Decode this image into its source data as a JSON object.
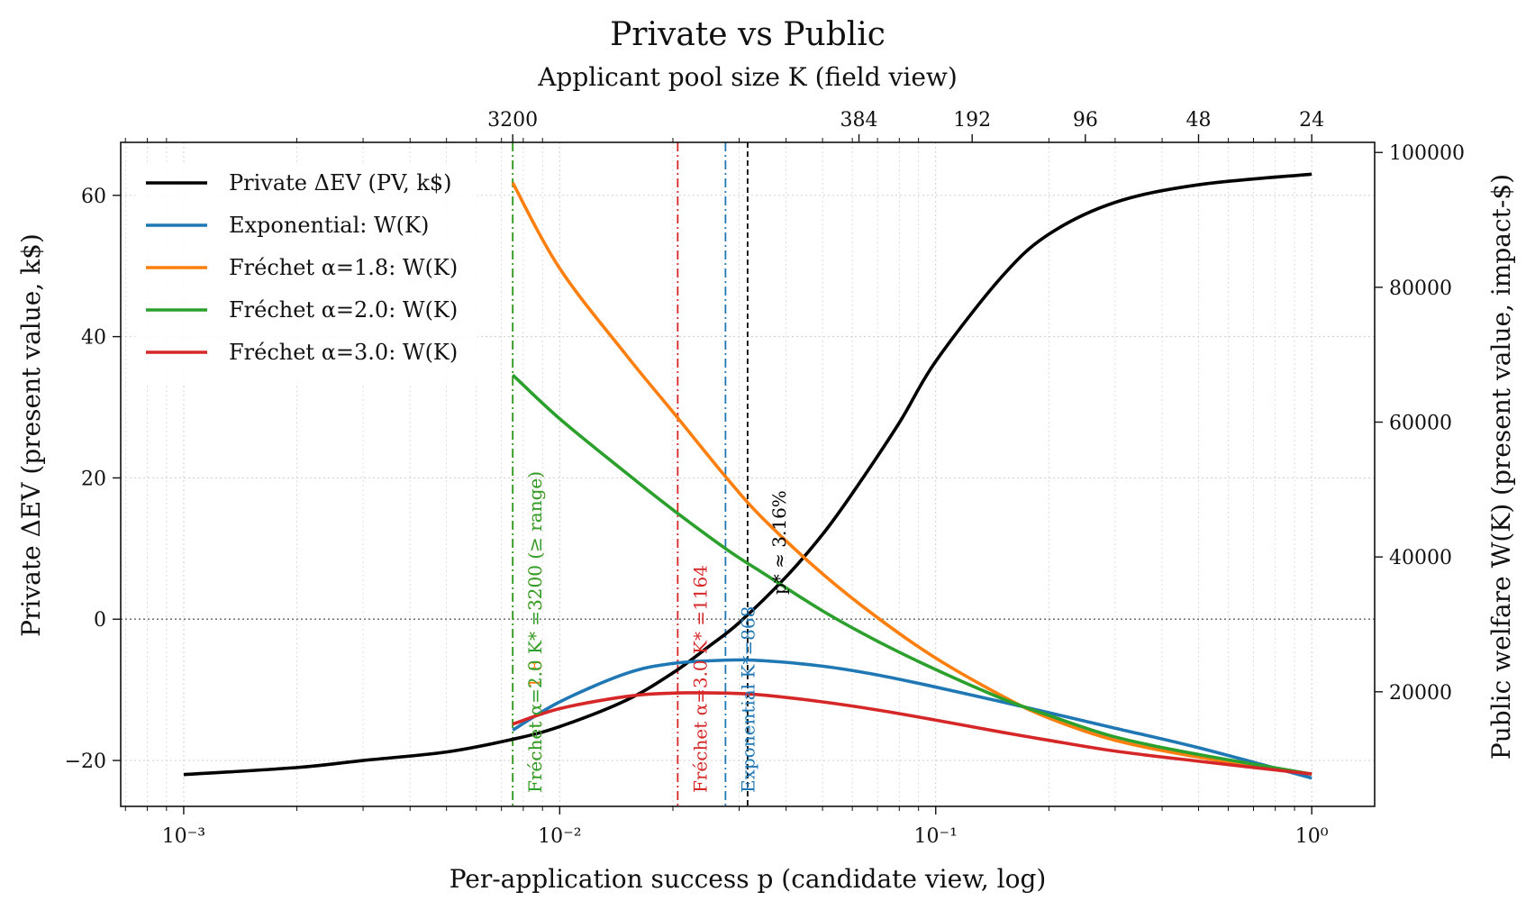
{
  "chart_data": {
    "type": "line",
    "title": "Private vs Public",
    "top_axis_label": "Applicant pool size K (field view)",
    "xlabel": "Per-application success p (candidate view, log)",
    "ylabel_left": "Private ΔEV (present value, k$)",
    "ylabel_right": "Public welfare W(K) (present value, impact-$)",
    "x_scale": "log",
    "xlim": [
      0.00068,
      1.47
    ],
    "ylim_left": [
      -26.5,
      67.5
    ],
    "ylim_right": [
      3000,
      101500
    ],
    "x_ticks": [
      0.001,
      0.01,
      0.1,
      1
    ],
    "x_tick_labels": [
      "10⁻³",
      "10⁻²",
      "10⁻¹",
      "10⁰"
    ],
    "y_left_ticks": [
      -20,
      0,
      20,
      40,
      60
    ],
    "y_left_tick_labels": [
      "−20",
      "0",
      "20",
      "40",
      "60"
    ],
    "y_right_ticks": [
      20000,
      40000,
      60000,
      80000,
      100000
    ],
    "y_right_tick_labels": [
      "20000",
      "40000",
      "60000",
      "80000",
      "100000"
    ],
    "top_ticks": [
      {
        "label": "3200",
        "p": 0.0075
      },
      {
        "label": "384",
        "p": 0.0625
      },
      {
        "label": "192",
        "p": 0.125
      },
      {
        "label": "96",
        "p": 0.25
      },
      {
        "label": "48",
        "p": 0.5
      },
      {
        "label": "24",
        "p": 1.0
      }
    ],
    "grid": true,
    "legend_position": "top-left",
    "legend": [
      {
        "label": "Private ΔEV (PV, k$)",
        "color": "#000000"
      },
      {
        "label": "Exponential: W(K)",
        "color": "#1f77b4"
      },
      {
        "label": "Fréchet α=1.8: W(K)",
        "color": "#ff7f0e"
      },
      {
        "label": "Fréchet α=2.0: W(K)",
        "color": "#2ca02c"
      },
      {
        "label": "Fréchet α=3.0: W(K)",
        "color": "#d62728"
      }
    ],
    "series": [
      {
        "name": "Private ΔEV (PV, k$)",
        "color": "#000000",
        "axis": "left",
        "x": [
          0.001,
          0.002,
          0.003,
          0.005,
          0.0075,
          0.01,
          0.015,
          0.02,
          0.025,
          0.03,
          0.04,
          0.05,
          0.06,
          0.08,
          0.1,
          0.15,
          0.2,
          0.3,
          0.5,
          1.0
        ],
        "y": [
          -22,
          -21,
          -20,
          -18.8,
          -17,
          -15.2,
          -11.5,
          -7.6,
          -3.8,
          -0.5,
          6,
          12,
          17.8,
          27.8,
          36.5,
          48.5,
          54.5,
          59,
          61.5,
          63
        ]
      },
      {
        "name": "Exponential: W(K)",
        "color": "#1f77b4",
        "axis": "right",
        "x": [
          0.0075,
          0.01,
          0.015,
          0.02,
          0.028,
          0.035,
          0.05,
          0.07,
          0.1,
          0.15,
          0.2,
          0.3,
          0.5,
          1.0
        ],
        "y": [
          14300,
          18500,
          22700,
          24200,
          24700,
          24600,
          23800,
          22500,
          20700,
          18500,
          16900,
          14600,
          11700,
          7200
        ]
      },
      {
        "name": "Fréchet α=1.8: W(K)",
        "color": "#ff7f0e",
        "axis": "right",
        "x": [
          0.0075,
          0.01,
          0.015,
          0.02,
          0.028,
          0.035,
          0.05,
          0.07,
          0.1,
          0.15,
          0.2,
          0.3,
          0.5,
          1.0
        ],
        "y": [
          95500,
          82800,
          70000,
          61500,
          51500,
          45500,
          37500,
          31000,
          25000,
          19400,
          16100,
          12800,
          10300,
          7800
        ]
      },
      {
        "name": "Fréchet α=2.0: W(K)",
        "color": "#2ca02c",
        "axis": "right",
        "x": [
          0.0075,
          0.01,
          0.015,
          0.02,
          0.028,
          0.035,
          0.05,
          0.07,
          0.1,
          0.15,
          0.2,
          0.3,
          0.5,
          1.0
        ],
        "y": [
          67000,
          60500,
          52500,
          47000,
          41000,
          37500,
          32000,
          27500,
          23300,
          19000,
          16500,
          13300,
          10700,
          7800
        ]
      },
      {
        "name": "Fréchet α=3.0: W(K)",
        "color": "#d62728",
        "axis": "right",
        "x": [
          0.0075,
          0.01,
          0.015,
          0.02,
          0.028,
          0.035,
          0.05,
          0.07,
          0.1,
          0.15,
          0.2,
          0.3,
          0.5,
          1.0
        ],
        "y": [
          15200,
          17500,
          19300,
          19800,
          19800,
          19500,
          18500,
          17300,
          15800,
          14000,
          12800,
          11200,
          9700,
          7800
        ]
      }
    ],
    "reference_lines": [
      {
        "axis": "y_left",
        "value": 0,
        "style": "dotted",
        "color": "#777777"
      },
      {
        "x": 0.0075,
        "color": "#ff7f0e",
        "style": "dashdot",
        "label": "Fréchet α=1.8 K* =3200 (≥ range)"
      },
      {
        "x": 0.0075,
        "color": "#2ca02c",
        "style": "dashdot",
        "label": "Fréchet α=2.0 K* =3200 (≥ range)"
      },
      {
        "x": 0.0206,
        "color": "#d62728",
        "style": "dashdot",
        "label": "Fréchet α=3.0 K* =1164"
      },
      {
        "x": 0.0276,
        "color": "#1f77b4",
        "style": "dashdot",
        "label": "Exponential K*=868"
      },
      {
        "x": 0.0316,
        "color": "#000000",
        "style": "dashed",
        "label": "p* ≈ 3.16%"
      }
    ]
  }
}
